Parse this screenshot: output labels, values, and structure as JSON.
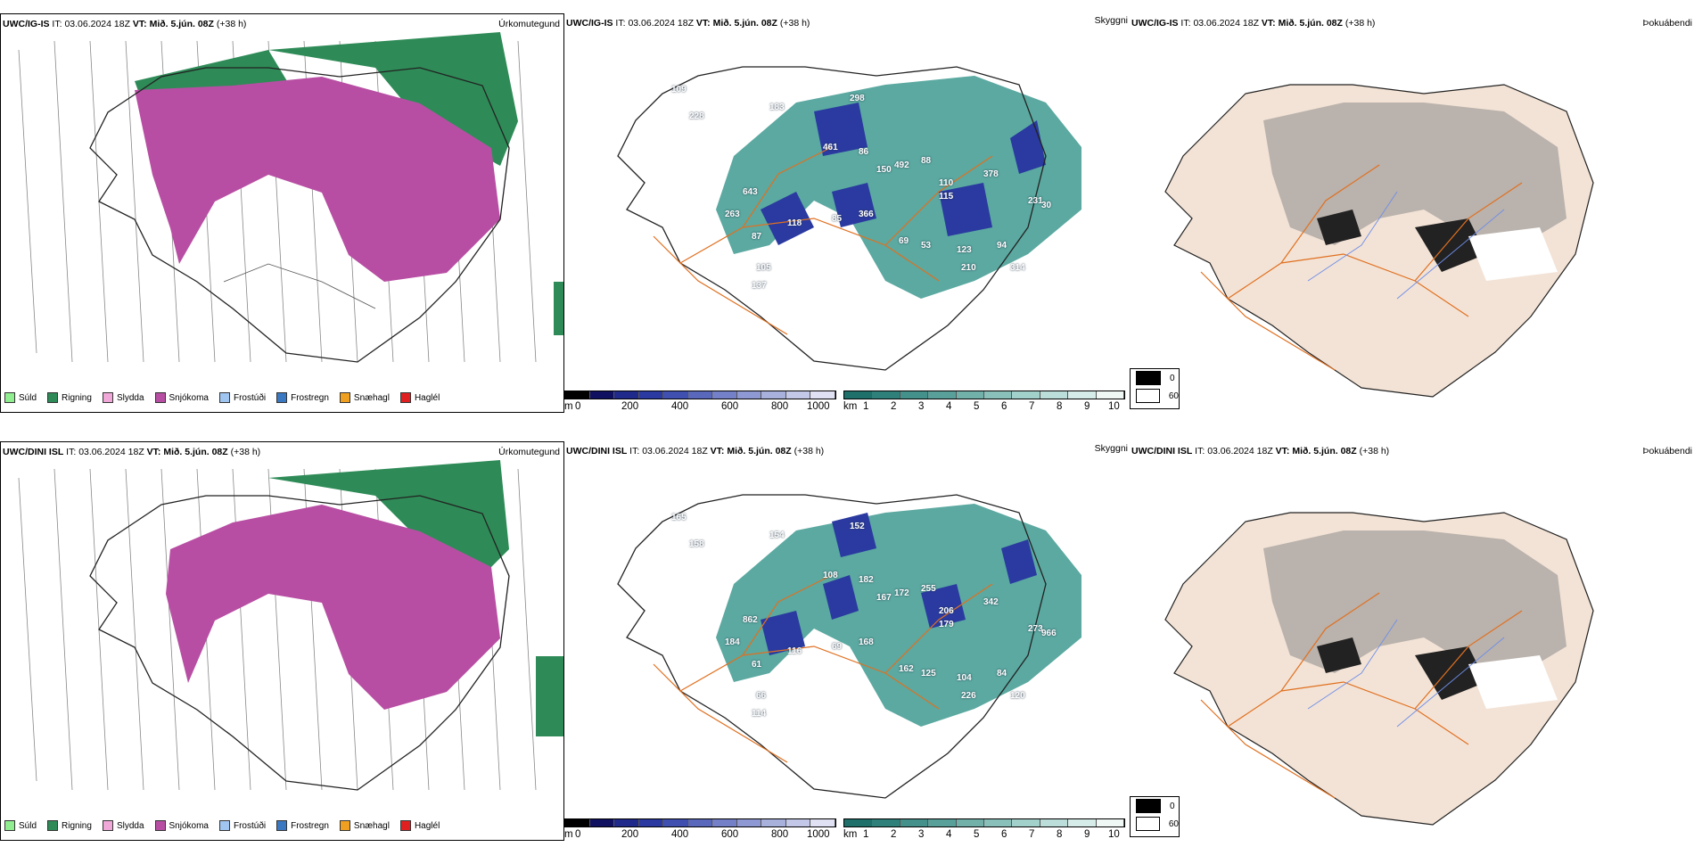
{
  "rows": [
    {
      "model_label": "UWC/IG-IS",
      "it_label": "IT:",
      "it_value": "03.06.2024 18Z",
      "vt_label": "VT:",
      "vt_value": "Mið. 5.jún. 08Z",
      "lead": "(+38 h)"
    },
    {
      "model_label": "UWC/DINI ISL",
      "it_label": "IT:",
      "it_value": "03.06.2024 18Z",
      "vt_label": "VT:",
      "vt_value": "Mið. 5.jún. 08Z",
      "lead": "(+38 h)"
    }
  ],
  "panel_titles": {
    "precip_type": "Úrkomutegund",
    "cloud": "Skyggni",
    "fog": "Þokuábendi"
  },
  "precip_legend": [
    {
      "label": "Súld",
      "color": "#90ee90"
    },
    {
      "label": "Rigning",
      "color": "#2e8b57"
    },
    {
      "label": "Slydda",
      "color": "#f0a8d8"
    },
    {
      "label": "Snjókoma",
      "color": "#b84ea3"
    },
    {
      "label": "Frostúði",
      "color": "#9fc5f0"
    },
    {
      "label": "Frostregn",
      "color": "#3a78c2"
    },
    {
      "label": "Snæhagl",
      "color": "#f0a020"
    },
    {
      "label": "Haglél",
      "color": "#e02020"
    }
  ],
  "ceiling_bar": {
    "unit": "m",
    "ticks": [
      "0",
      "200",
      "400",
      "600",
      "800",
      "1000"
    ],
    "colors": [
      "#000000",
      "#101060",
      "#202a8a",
      "#2a3aa0",
      "#4050b0",
      "#5a68bc",
      "#7480c8",
      "#8e98d2",
      "#a8b0dc",
      "#c4c8e8",
      "#e0e2f4"
    ]
  },
  "visibility_bar": {
    "unit": "km",
    "ticks": [
      "1",
      "2",
      "3",
      "4",
      "5",
      "6",
      "7",
      "8",
      "9",
      "10"
    ],
    "colors": [
      "#1f6f6a",
      "#2f807a",
      "#44908a",
      "#5aa09a",
      "#72b0aa",
      "#8ac0ba",
      "#a2d0ca",
      "#bcdeda",
      "#d6ece8",
      "#f0f8f6"
    ]
  },
  "fog_legend": [
    {
      "label": "0",
      "color": "#000000"
    },
    {
      "label": "60",
      "color": "#ffffff"
    }
  ],
  "ceiling_labels_top": [
    "109",
    "228",
    "183",
    "298",
    "461",
    "86",
    "150",
    "492",
    "88",
    "110",
    "115",
    "378",
    "263",
    "643",
    "118",
    "87",
    "85",
    "366",
    "69",
    "53",
    "123",
    "94",
    "314",
    "210",
    "105",
    "137",
    "231",
    "30"
  ],
  "ceiling_labels_bottom": [
    "165",
    "158",
    "154",
    "152",
    "108",
    "182",
    "167",
    "172",
    "255",
    "206",
    "179",
    "342",
    "184",
    "862",
    "116",
    "61",
    "69",
    "168",
    "162",
    "125",
    "104",
    "84",
    "120",
    "226",
    "66",
    "114",
    "273",
    "966"
  ],
  "colors": {
    "snow": "#b84ea3",
    "rain": "#2e8b57",
    "coast": "#222222",
    "roads": "#e07020",
    "rivers": "#6f8ee8",
    "land_fog": "#f3e3d6",
    "teal": "#3e9a90"
  }
}
